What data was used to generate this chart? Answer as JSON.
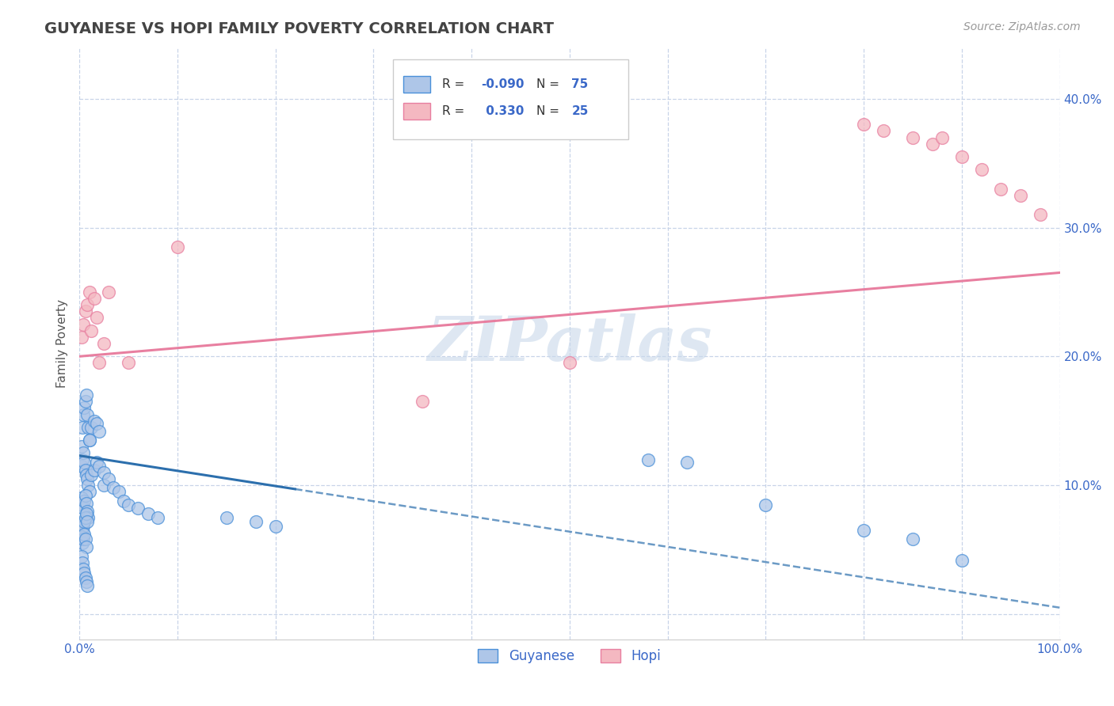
{
  "title": "GUYANESE VS HOPI FAMILY POVERTY CORRELATION CHART",
  "source": "Source: ZipAtlas.com",
  "ylabel": "Family Poverty",
  "xmin": 0.0,
  "xmax": 1.0,
  "ymin": -0.02,
  "ymax": 0.44,
  "xticks": [
    0.0,
    0.1,
    0.2,
    0.3,
    0.4,
    0.5,
    0.6,
    0.7,
    0.8,
    0.9,
    1.0
  ],
  "xtick_labels": [
    "0.0%",
    "",
    "",
    "",
    "",
    "",
    "",
    "",
    "",
    "",
    "100.0%"
  ],
  "yticks": [
    0.0,
    0.1,
    0.2,
    0.3,
    0.4
  ],
  "ytick_labels": [
    "",
    "10.0%",
    "20.0%",
    "30.0%",
    "40.0%"
  ],
  "guyanese_color": "#aec6e8",
  "hopi_color": "#f4b8c1",
  "guyanese_edge_color": "#4a90d9",
  "hopi_edge_color": "#e87fa0",
  "guyanese_line_color": "#2c6fad",
  "hopi_line_color": "#e87fa0",
  "legend_text_color": "#3a68c8",
  "watermark": "ZIPatlas",
  "background_color": "#ffffff",
  "grid_color": "#c8d4e8",
  "guyanese_x": [
    0.002,
    0.003,
    0.004,
    0.005,
    0.006,
    0.007,
    0.008,
    0.009,
    0.01,
    0.002,
    0.003,
    0.004,
    0.005,
    0.006,
    0.007,
    0.008,
    0.009,
    0.01,
    0.002,
    0.003,
    0.004,
    0.005,
    0.006,
    0.007,
    0.008,
    0.009,
    0.002,
    0.003,
    0.004,
    0.005,
    0.006,
    0.007,
    0.008,
    0.002,
    0.003,
    0.004,
    0.005,
    0.006,
    0.007,
    0.01,
    0.012,
    0.015,
    0.018,
    0.02,
    0.012,
    0.015,
    0.018,
    0.02,
    0.025,
    0.025,
    0.03,
    0.035,
    0.04,
    0.045,
    0.05,
    0.06,
    0.07,
    0.08,
    0.15,
    0.18,
    0.2,
    0.58,
    0.62,
    0.7,
    0.8,
    0.85,
    0.9,
    0.002,
    0.003,
    0.004,
    0.005,
    0.006,
    0.007,
    0.008
  ],
  "guyanese_y": [
    0.13,
    0.145,
    0.155,
    0.16,
    0.165,
    0.17,
    0.155,
    0.145,
    0.135,
    0.115,
    0.12,
    0.125,
    0.118,
    0.112,
    0.108,
    0.105,
    0.1,
    0.095,
    0.09,
    0.085,
    0.082,
    0.088,
    0.092,
    0.086,
    0.08,
    0.075,
    0.07,
    0.065,
    0.068,
    0.072,
    0.075,
    0.078,
    0.072,
    0.06,
    0.055,
    0.058,
    0.062,
    0.058,
    0.052,
    0.135,
    0.145,
    0.15,
    0.148,
    0.142,
    0.108,
    0.112,
    0.118,
    0.115,
    0.11,
    0.1,
    0.105,
    0.098,
    0.095,
    0.088,
    0.085,
    0.082,
    0.078,
    0.075,
    0.075,
    0.072,
    0.068,
    0.12,
    0.118,
    0.085,
    0.065,
    0.058,
    0.042,
    0.045,
    0.04,
    0.035,
    0.032,
    0.028,
    0.025,
    0.022
  ],
  "hopi_x": [
    0.002,
    0.004,
    0.006,
    0.008,
    0.01,
    0.012,
    0.015,
    0.018,
    0.02,
    0.025,
    0.03,
    0.05,
    0.1,
    0.8,
    0.82,
    0.85,
    0.87,
    0.88,
    0.9,
    0.92,
    0.94,
    0.96,
    0.98,
    0.5,
    0.35
  ],
  "hopi_y": [
    0.215,
    0.225,
    0.235,
    0.24,
    0.25,
    0.22,
    0.245,
    0.23,
    0.195,
    0.21,
    0.25,
    0.195,
    0.285,
    0.38,
    0.375,
    0.37,
    0.365,
    0.37,
    0.355,
    0.345,
    0.33,
    0.325,
    0.31,
    0.195,
    0.165
  ],
  "blue_line_x0": 0.0,
  "blue_line_x_solid_end": 0.22,
  "blue_line_x1": 1.0,
  "blue_line_y0": 0.123,
  "blue_line_y1": 0.005,
  "pink_line_x0": 0.0,
  "pink_line_x1": 1.0,
  "pink_line_y0": 0.2,
  "pink_line_y1": 0.265
}
